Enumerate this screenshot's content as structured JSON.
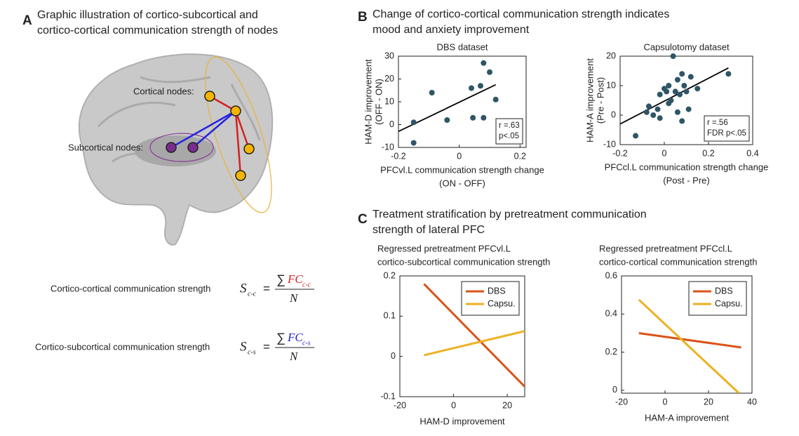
{
  "panel_a": {
    "letter": "A",
    "title": [
      "Graphic illustration of cortico-subcortical and",
      "cortico-cortical communication strength of nodes"
    ],
    "cortical_label": "Cortical nodes:",
    "subcortical_label": "Subcortical nodes:",
    "formulas": [
      {
        "label": "Cortico-cortical communication strength",
        "symbol": "S",
        "subscript": "c-c",
        "equals": "=",
        "sum": "∑",
        "numerator": "FC",
        "numerator_subscript": "c-c",
        "denominator": "N",
        "color": "#d62020"
      },
      {
        "label": "Cortico-subcortical communication strength",
        "symbol": "S",
        "subscript": "c-s",
        "equals": "=",
        "sum": "∑",
        "numerator": "FC",
        "numerator_subscript": "c-s",
        "denominator": "N",
        "color": "#2020d6"
      }
    ]
  },
  "panel_b": {
    "letter": "B",
    "title": [
      "Change of cortico-cortical communication strength indicates",
      "mood and anxiety improvement"
    ]
  },
  "panel_c": {
    "letter": "C",
    "title": [
      "Treatment stratification by pretreatment communication",
      "strength of lateral PFC"
    ]
  },
  "chart_data": [
    {
      "type": "scatter",
      "title": [
        "DBS dataset"
      ],
      "xlabel": [
        "PFCvl.L communication strength change",
        "(ON - OFF)"
      ],
      "ylabel": [
        "HAM-D improvement",
        "(OFF - ON)"
      ],
      "x": [
        -0.15,
        -0.15,
        -0.09,
        -0.04,
        0.04,
        0.045,
        0.07,
        0.08,
        0.08,
        0.1,
        0.12
      ],
      "values": [
        1,
        -8,
        14,
        2,
        16,
        3,
        17,
        27,
        3,
        23,
        11
      ],
      "color": "#2f5566",
      "fit_line": {
        "x": [
          -0.2,
          0.12
        ],
        "y": [
          -3,
          17.5
        ],
        "color": "#000000"
      },
      "annotation": [
        "r =.63",
        "p<.05"
      ],
      "xlim": [
        -0.2,
        0.22
      ],
      "xticks": [
        -0.2,
        0,
        0.2
      ],
      "ylim": [
        -10,
        30
      ],
      "yticks": [
        -10,
        0,
        10,
        20,
        30
      ]
    },
    {
      "type": "scatter",
      "title": [
        "Capsulotomy dataset"
      ],
      "xlabel": [
        "PFCcl.L communication strength change",
        "(Post - Pre)"
      ],
      "ylabel": [
        "HAM-A improvement",
        "(Pre - Post)"
      ],
      "x": [
        -0.13,
        -0.08,
        -0.07,
        -0.05,
        -0.03,
        -0.02,
        -0.02,
        0,
        0.01,
        0.02,
        0.02,
        0.03,
        0.04,
        0.05,
        0.06,
        0.06,
        0.07,
        0.08,
        0.08,
        0.09,
        0.1,
        0.11,
        0.12,
        0.15,
        0.29
      ],
      "values": [
        -7,
        1,
        3,
        0,
        2,
        -1,
        7,
        9,
        8,
        10,
        4,
        5,
        20,
        8,
        12,
        1,
        7,
        14,
        -2,
        10,
        8,
        2,
        13,
        9,
        14
      ],
      "color": "#2f5566",
      "fit_line": {
        "x": [
          -0.2,
          0.29
        ],
        "y": [
          -3,
          16
        ],
        "color": "#000000"
      },
      "annotation": [
        "r =.56",
        "FDR p<.05"
      ],
      "xlim": [
        -0.2,
        0.4
      ],
      "xticks": [
        -0.2,
        0,
        0.2,
        0.4
      ],
      "ylim": [
        -10,
        20
      ],
      "yticks": [
        -10,
        0,
        10,
        20
      ]
    },
    {
      "type": "line",
      "title": [
        "Regressed pretreatment PFCvl.L",
        "cortico-subcortical communication strength"
      ],
      "xlabel": [
        "HAM-D improvement"
      ],
      "series": [
        {
          "name": "DBS",
          "color": "#d95319",
          "x": [
            -11,
            26.5
          ],
          "values": [
            0.18,
            -0.075
          ]
        },
        {
          "name": "Capsu.",
          "color": "#edb120",
          "x": [
            -11,
            26.5
          ],
          "values": [
            0.003,
            0.063
          ]
        }
      ],
      "legend": "upper right",
      "xlim": [
        -20,
        26.5
      ],
      "xticks": [
        -20,
        0,
        20
      ],
      "ylim": [
        -0.1,
        0.2
      ],
      "yticks": [
        -0.1,
        0,
        0.1,
        0.2
      ]
    },
    {
      "type": "line",
      "title": [
        "Regressed pretreatment PFCcl.L",
        "cortico-cortical communication strength"
      ],
      "xlabel": [
        "HAM-A improvement"
      ],
      "series": [
        {
          "name": "DBS",
          "color": "#d95319",
          "x": [
            -12,
            35
          ],
          "values": [
            0.3,
            0.225
          ]
        },
        {
          "name": "Capsu.",
          "color": "#edb120",
          "x": [
            -12,
            34
          ],
          "values": [
            0.475,
            -0.015
          ]
        }
      ],
      "legend": "upper right",
      "xlim": [
        -20,
        40
      ],
      "xticks": [
        -20,
        0,
        20,
        40
      ],
      "ylim": [
        -0.015,
        0.6
      ],
      "yticks": [
        0,
        0.2,
        0.4,
        0.6
      ]
    }
  ]
}
